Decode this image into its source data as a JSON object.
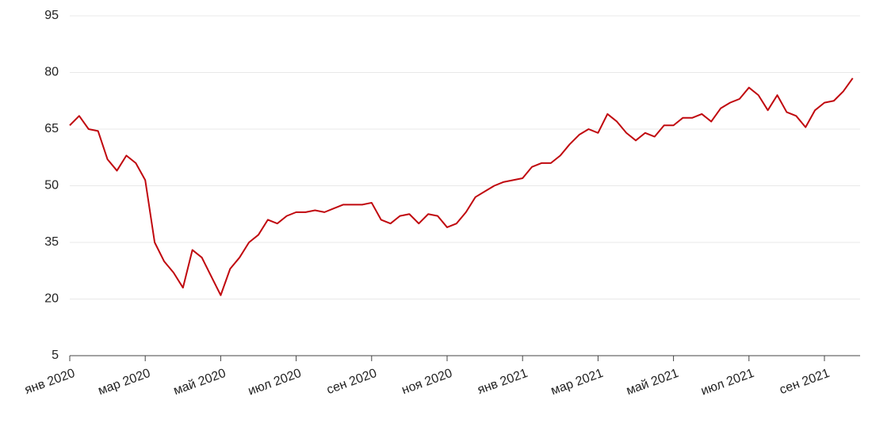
{
  "chart_data": {
    "type": "line",
    "categories": [
      "янв 2020",
      null,
      null,
      null,
      null,
      null,
      null,
      null,
      "мар 2020",
      null,
      null,
      null,
      null,
      null,
      null,
      null,
      "май 2020",
      null,
      null,
      null,
      null,
      null,
      null,
      null,
      "июл 2020",
      null,
      null,
      null,
      null,
      null,
      null,
      null,
      "сен 2020",
      null,
      null,
      null,
      null,
      null,
      null,
      null,
      "ноя 2020",
      null,
      null,
      null,
      null,
      null,
      null,
      null,
      "янв 2021",
      null,
      null,
      null,
      null,
      null,
      null,
      null,
      "мар 2021",
      null,
      null,
      null,
      null,
      null,
      null,
      null,
      "май 2021",
      null,
      null,
      null,
      null,
      null,
      null,
      null,
      "июл 2021",
      null,
      null,
      null,
      null,
      null,
      null,
      null,
      "сен 2021",
      null,
      null,
      null
    ],
    "series": [
      {
        "color": "#c0080e",
        "values": [
          66,
          68.5,
          65,
          64.5,
          57,
          54,
          58,
          56,
          51.5,
          35,
          30,
          27,
          23,
          33,
          31,
          26,
          21,
          28,
          31,
          35,
          37,
          41,
          40,
          42,
          43,
          43,
          43.5,
          43,
          44,
          45,
          45,
          45,
          45.5,
          41,
          40,
          42,
          42.5,
          40,
          42.5,
          42,
          39,
          40,
          43,
          47,
          48.5,
          50,
          51,
          51.5,
          52,
          55,
          56,
          56,
          58,
          61,
          63.5,
          65,
          64,
          69,
          67,
          64,
          62,
          64,
          63,
          66,
          66,
          68,
          68,
          69,
          67,
          70.5,
          72,
          73,
          76,
          74,
          70,
          74,
          69.5,
          68.5,
          65.5,
          70,
          72,
          72.5,
          75,
          78.5
        ]
      }
    ],
    "ylim": [
      5,
      95
    ],
    "yticks": [
      5,
      20,
      35,
      50,
      65,
      80,
      95
    ],
    "grid": true
  }
}
